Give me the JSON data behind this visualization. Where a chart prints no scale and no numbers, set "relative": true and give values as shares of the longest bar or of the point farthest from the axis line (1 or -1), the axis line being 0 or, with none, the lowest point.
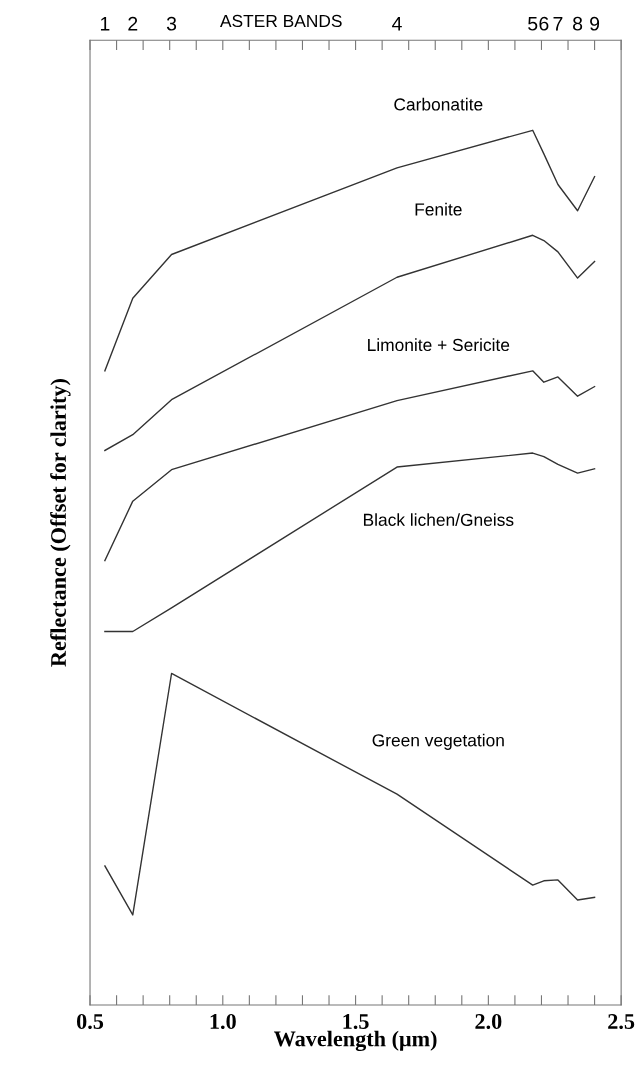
{
  "chart_data": {
    "type": "line",
    "relative": true,
    "xlabel": "Wavelength (μm)",
    "ylabel": "Reflectance (Offset for clarity)",
    "annotations": [
      "ASTER BANDS",
      "1",
      "2",
      "3",
      "4",
      "5",
      "6",
      "7",
      "8",
      "9"
    ],
    "x": [
      0.556,
      0.661,
      0.807,
      1.656,
      2.167,
      2.209,
      2.262,
      2.336,
      2.4
    ],
    "xlim": [
      0.5,
      2.5
    ],
    "xticks": [
      0.5,
      {
        "value": 0.6,
        "label": null
      },
      {
        "value": 0.7,
        "label": null
      },
      {
        "value": 0.8,
        "label": null
      },
      {
        "value": 0.9,
        "label": null
      },
      {
        "value": 1.0,
        "label": "1.0"
      },
      {
        "value": 1.1,
        "label": null
      },
      {
        "value": 1.2,
        "label": null
      },
      {
        "value": 1.3,
        "label": null
      },
      {
        "value": 1.4,
        "label": null
      },
      1.5,
      {
        "value": 1.6,
        "label": null
      },
      {
        "value": 1.7,
        "label": null
      },
      {
        "value": 1.8,
        "label": null
      },
      {
        "value": 1.9,
        "label": null
      },
      {
        "value": 2.0,
        "label": "2.0"
      },
      {
        "value": 2.1,
        "label": null
      },
      {
        "value": 2.2,
        "label": null
      },
      {
        "value": 2.3,
        "label": null
      },
      {
        "value": 2.4,
        "label": null
      },
      2.5
    ],
    "series": [
      {
        "name": "Carbonatite",
        "color": "#333333",
        "values": [
          0.725,
          0.808,
          0.858,
          0.957,
          1.0,
          0.973,
          0.938,
          0.908,
          0.947
        ]
      },
      {
        "name": "Fenite",
        "color": "#333333",
        "values": [
          0.634,
          0.652,
          0.692,
          0.832,
          0.88,
          0.874,
          0.861,
          0.831,
          0.85
        ]
      },
      {
        "name": "Limonite + Sericite",
        "color": "#333333",
        "values": [
          0.508,
          0.576,
          0.612,
          0.691,
          0.725,
          0.712,
          0.718,
          0.696,
          0.707
        ]
      },
      {
        "name": "Black lichen/Gneiss",
        "color": "#333333",
        "values": [
          0.427,
          0.427,
          0.454,
          0.615,
          0.631,
          0.627,
          0.618,
          0.608,
          0.613
        ]
      },
      {
        "name": "Green vegetation",
        "color": "#333333",
        "values": [
          0.159,
          0.103,
          0.379,
          0.241,
          0.137,
          0.142,
          0.143,
          0.12,
          0.123
        ]
      }
    ],
    "grid": false,
    "marker": "none",
    "line_style": "solid"
  }
}
